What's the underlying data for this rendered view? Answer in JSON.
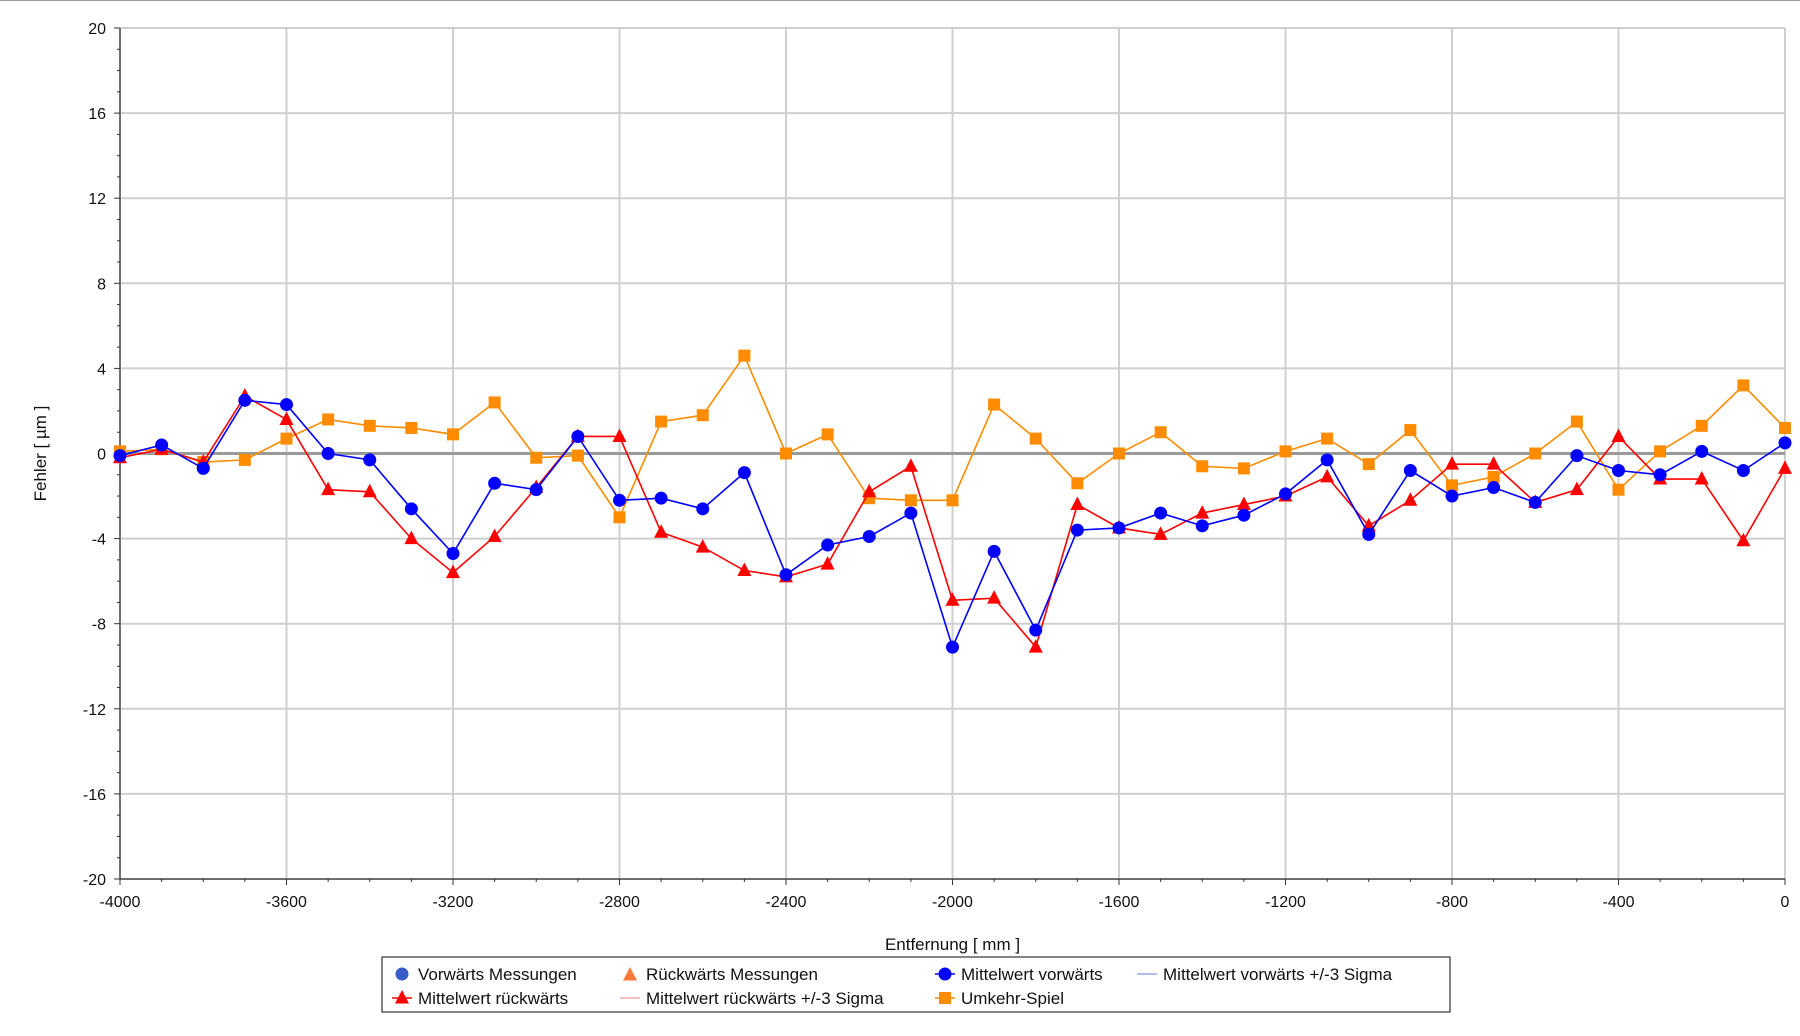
{
  "chart_data": {
    "type": "line",
    "xlabel": "Entfernung [ mm ]",
    "ylabel": "Fehler [ µm ]",
    "xlim": [
      -4000,
      0
    ],
    "ylim": [
      -20,
      20
    ],
    "xticks": [
      -4000,
      -3600,
      -3200,
      -2800,
      -2400,
      -2000,
      -1600,
      -1200,
      -800,
      -400,
      0
    ],
    "yticks": [
      20,
      16,
      12,
      8,
      4,
      0,
      -4,
      -8,
      -12,
      -16,
      -20
    ],
    "grid": true,
    "legend_position": "bottom",
    "x": [
      -4000,
      -3900,
      -3800,
      -3700,
      -3600,
      -3500,
      -3400,
      -3300,
      -3200,
      -3100,
      -3000,
      -2900,
      -2800,
      -2700,
      -2600,
      -2500,
      -2400,
      -2300,
      -2200,
      -2100,
      -2000,
      -1900,
      -1800,
      -1700,
      -1600,
      -1500,
      -1400,
      -1300,
      -1200,
      -1100,
      -1000,
      -900,
      -800,
      -700,
      -600,
      -500,
      -400,
      -300,
      -200,
      -100,
      0
    ],
    "series": [
      {
        "name": "Mittelwert vorwärts",
        "color": "#0000ff",
        "marker": "circle",
        "values": [
          -0.1,
          0.4,
          -0.7,
          2.5,
          2.3,
          0.0,
          -0.3,
          -2.6,
          -4.7,
          -1.4,
          -1.7,
          0.8,
          -2.2,
          -2.1,
          -2.6,
          -0.9,
          -5.7,
          -4.3,
          -3.9,
          -2.8,
          -9.1,
          -4.6,
          -8.3,
          -3.6,
          -3.5,
          -2.8,
          -3.4,
          -2.9,
          -1.9,
          -0.3,
          -3.8,
          -0.8,
          -2.0,
          -1.6,
          -2.3,
          -0.1,
          -0.8,
          -1.0,
          0.1,
          -0.8,
          0.5
        ]
      },
      {
        "name": "Mittelwert rückwärts",
        "color": "#ff0000",
        "marker": "triangle",
        "values": [
          -0.2,
          0.2,
          -0.4,
          2.7,
          1.6,
          -1.7,
          -1.8,
          -4.0,
          -5.6,
          -3.9,
          -1.6,
          0.8,
          0.8,
          -3.7,
          -4.4,
          -5.5,
          -5.8,
          -5.2,
          -1.8,
          -0.6,
          -6.9,
          -6.8,
          -9.1,
          -2.4,
          -3.5,
          -3.8,
          -2.8,
          -2.4,
          -2.0,
          -1.1,
          -3.4,
          -2.2,
          -0.5,
          -0.5,
          -2.3,
          -1.7,
          0.8,
          -1.2,
          -1.2,
          -4.1,
          -0.7
        ]
      },
      {
        "name": "Umkehr-Spiel",
        "color": "#ff8c00",
        "marker": "square",
        "values": [
          0.1,
          0.2,
          -0.4,
          -0.3,
          0.7,
          1.6,
          1.3,
          1.2,
          0.9,
          2.4,
          -0.2,
          -0.1,
          -3.0,
          1.5,
          1.8,
          4.6,
          0.0,
          0.9,
          -2.1,
          -2.2,
          -2.2,
          2.3,
          0.7,
          -1.4,
          0.0,
          1.0,
          -0.6,
          -0.7,
          0.1,
          0.7,
          -0.5,
          1.1,
          -1.5,
          -1.1,
          0.0,
          1.5,
          -1.7,
          0.1,
          1.3,
          3.2,
          1.2
        ]
      }
    ]
  },
  "legend": [
    {
      "label": "Vorwärts Messungen",
      "color": "#3a5cc8",
      "symbol": "circle"
    },
    {
      "label": "Rückwärts Messungen",
      "color": "#ff7a3a",
      "symbol": "triangle"
    },
    {
      "label": "Mittelwert vorwärts",
      "color": "#0000ff",
      "symbol": "circle-line"
    },
    {
      "label": "Mittelwert vorwärts +/-3 Sigma",
      "color": "#9aa8e8",
      "symbol": "thin-line"
    },
    {
      "label": "Mittelwert rückwärts",
      "color": "#ff0000",
      "symbol": "triangle-line"
    },
    {
      "label": "Mittelwert rückwärts +/-3 Sigma",
      "color": "#f4a8a8",
      "symbol": "thin-line"
    },
    {
      "label": "Umkehr-Spiel",
      "color": "#ff8c00",
      "symbol": "square-line"
    }
  ]
}
